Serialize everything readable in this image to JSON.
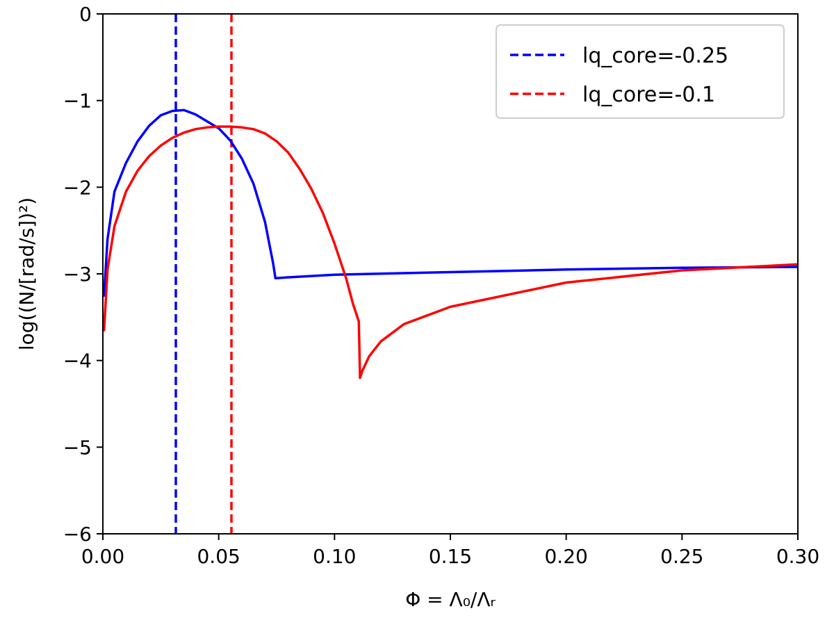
{
  "chart_data": {
    "type": "line",
    "xlabel": "Φ = Λ₀/Λᵣ",
    "ylabel": "log((N/[rad/s])²)",
    "xlim": [
      0.0,
      0.3
    ],
    "ylim": [
      -6,
      0
    ],
    "xticks": [
      0.0,
      0.05,
      0.1,
      0.15,
      0.2,
      0.25,
      0.3
    ],
    "xtick_labels": [
      "0.00",
      "0.05",
      "0.10",
      "0.15",
      "0.20",
      "0.25",
      "0.30"
    ],
    "yticks": [
      -6,
      -5,
      -4,
      -3,
      -2,
      -1,
      0
    ],
    "ytick_labels": [
      "−6",
      "−5",
      "−4",
      "−3",
      "−2",
      "−1",
      "0"
    ],
    "grid": false,
    "legend_position": "top-right",
    "series": [
      {
        "name": "",
        "color": "#0000ff",
        "style": "solid",
        "x": [
          0.0005,
          0.002,
          0.005,
          0.01,
          0.015,
          0.02,
          0.025,
          0.03,
          0.035,
          0.04,
          0.045,
          0.05,
          0.055,
          0.06,
          0.065,
          0.07,
          0.0735,
          0.0745,
          0.08,
          0.1,
          0.15,
          0.2,
          0.25,
          0.3
        ],
        "y": [
          -3.25,
          -2.6,
          -2.05,
          -1.72,
          -1.47,
          -1.29,
          -1.17,
          -1.12,
          -1.11,
          -1.16,
          -1.24,
          -1.32,
          -1.46,
          -1.67,
          -1.96,
          -2.4,
          -2.88,
          -3.05,
          -3.04,
          -3.01,
          -2.98,
          -2.95,
          -2.93,
          -2.92
        ]
      },
      {
        "name": "",
        "color": "#ff0000",
        "style": "solid",
        "x": [
          0.0005,
          0.002,
          0.005,
          0.01,
          0.015,
          0.02,
          0.025,
          0.03,
          0.035,
          0.04,
          0.045,
          0.05,
          0.055,
          0.06,
          0.065,
          0.07,
          0.075,
          0.08,
          0.085,
          0.09,
          0.095,
          0.1,
          0.105,
          0.108,
          0.1105,
          0.111,
          0.112,
          0.115,
          0.12,
          0.13,
          0.15,
          0.2,
          0.25,
          0.3
        ],
        "y": [
          -3.65,
          -2.95,
          -2.45,
          -2.05,
          -1.81,
          -1.64,
          -1.52,
          -1.43,
          -1.37,
          -1.33,
          -1.31,
          -1.3,
          -1.3,
          -1.31,
          -1.33,
          -1.38,
          -1.47,
          -1.6,
          -1.79,
          -2.02,
          -2.3,
          -2.65,
          -3.05,
          -3.35,
          -3.55,
          -4.2,
          -4.12,
          -3.95,
          -3.78,
          -3.58,
          -3.38,
          -3.1,
          -2.96,
          -2.89
        ]
      }
    ],
    "vlines": [
      {
        "name": "lq_core=-0.25",
        "color": "#0000ff",
        "x": 0.0315
      },
      {
        "name": "lq_core=-0.1",
        "color": "#ff0000",
        "x": 0.0555
      }
    ]
  }
}
